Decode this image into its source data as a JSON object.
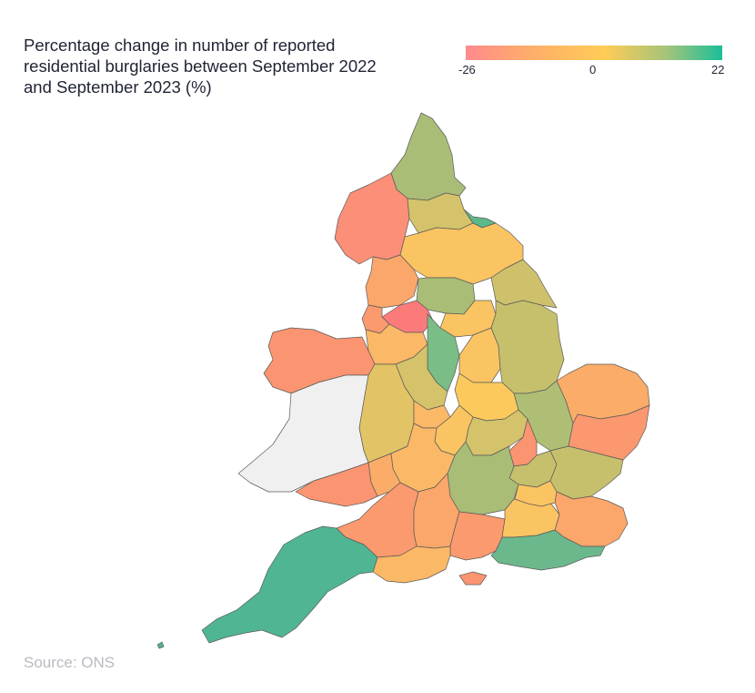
{
  "title": "Percentage change in number of reported residential burglaries between September 2022 and September 2023 (%)",
  "legend": {
    "min_label": "-26",
    "mid_label": "0",
    "max_label": "22",
    "colors": [
      "#ff8a8c",
      "#ffad6a",
      "#ffcc55",
      "#a6c47a",
      "#1bbe99"
    ]
  },
  "source": "Source: ONS",
  "regions_color_scale": {
    "no_data": "#f0f0f0",
    "region_colors": {
      "northumbria": "#a9bd77",
      "cumbria": "#fb8f78",
      "durham": "#d4c36a",
      "cleveland": "#5cb98c",
      "north-yorkshire": "#fbc462",
      "humberside": "#cfc16b",
      "lancashire": "#fba66a",
      "west-yorkshire": "#a9bd77",
      "greater-manchester": "#fb7b7b",
      "merseyside": "#fb9a6e",
      "south-yorkshire": "#fbc462",
      "cheshire": "#fbb866",
      "derbyshire": "#7bbd86",
      "nottinghamshire": "#fbc462",
      "lincolnshire": "#c6c06d",
      "north-wales": "#fb9470",
      "dyfed-powys": "#f0f0f0",
      "staffordshire": "#d4c36a",
      "west-mercia": "#e2c466",
      "west-midlands": "#fbb866",
      "leicestershire": "#fcca5c",
      "northamptonshire": "#d4c36a",
      "warwickshire": "#fbc462",
      "cambridgeshire": "#aebe75",
      "norfolk": "#fbac68",
      "suffolk": "#fb9870",
      "bedfordshire": "#fb9470",
      "hertfordshire": "#c6c06d",
      "essex": "#c6c06d",
      "thames-valley": "#a9bd77",
      "gloucestershire": "#fbb866",
      "gwent": "#fbac68",
      "south-wales": "#fb9470",
      "avon-somerset": "#fb9a6e",
      "wiltshire": "#fba66a",
      "hampshire": "#fb9a6e",
      "surrey": "#fbc462",
      "london": "#fbc462",
      "kent": "#fba66a",
      "sussex": "#6cb88d",
      "dorset": "#fbb866",
      "isle-of-wight": "#fb9470",
      "devon-cornwall": "#4fb593"
    }
  }
}
